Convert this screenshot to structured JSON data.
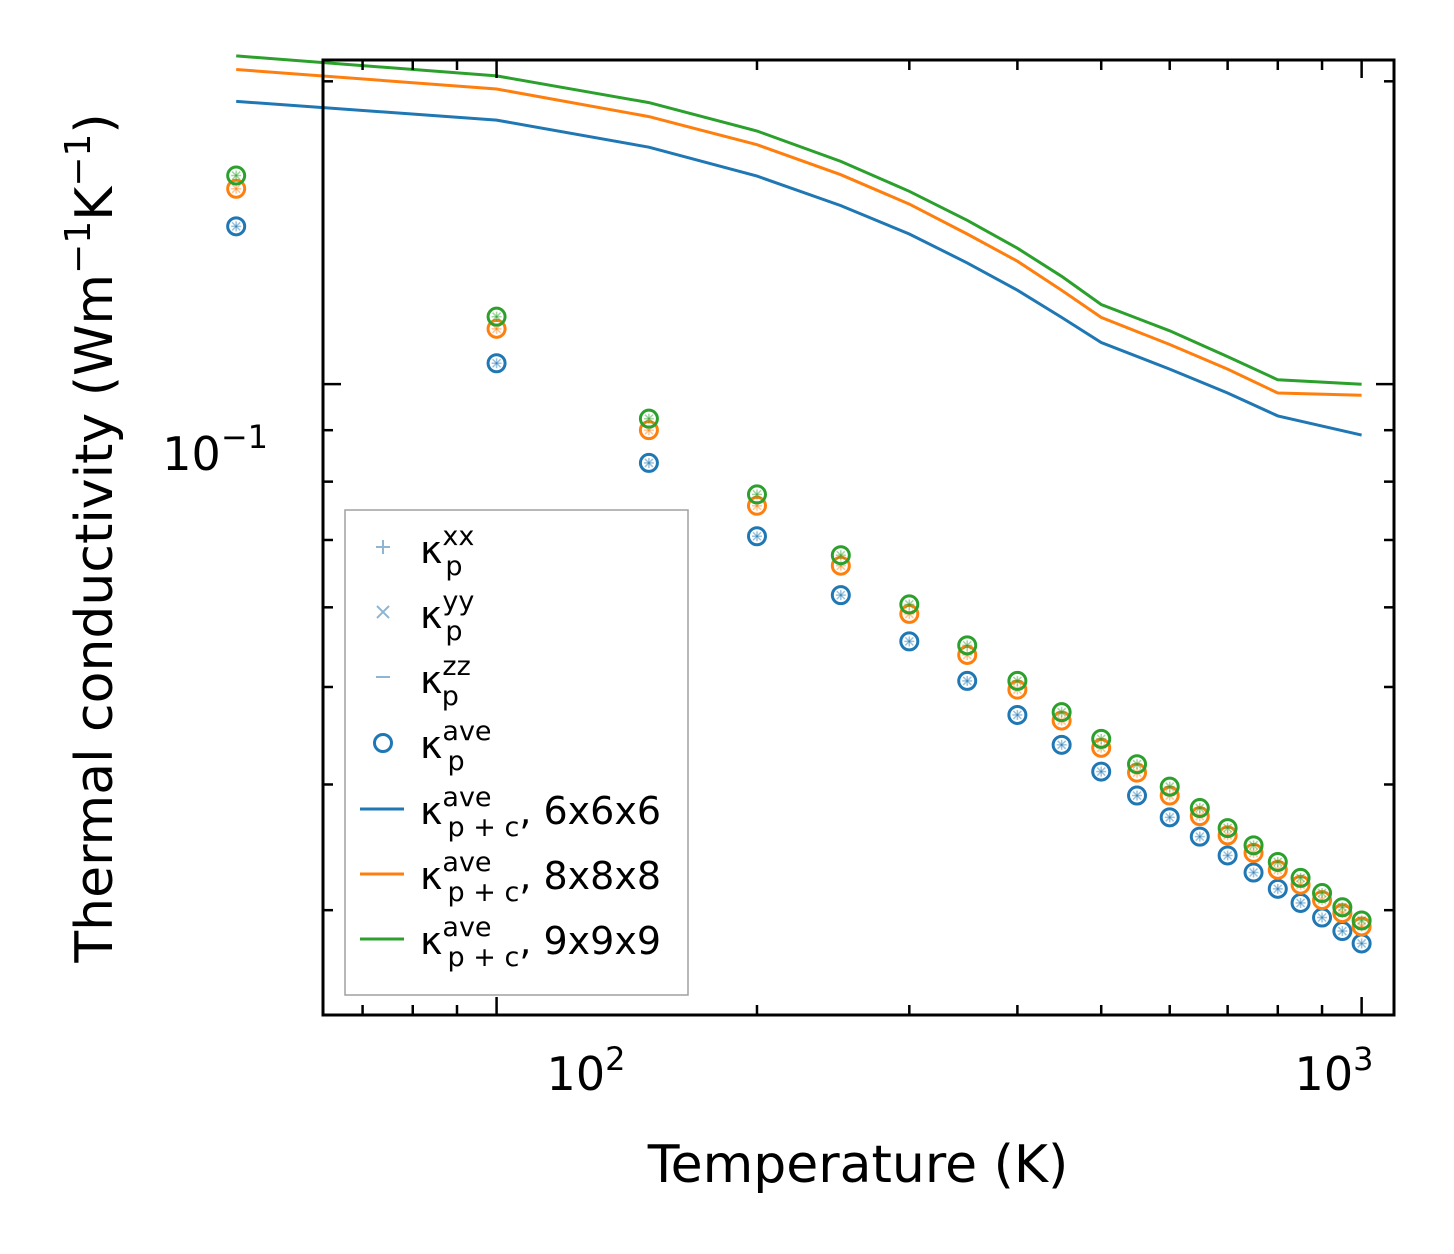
{
  "chart_data": {
    "type": "scatter",
    "title": "",
    "xlabel": "Temperature (K)",
    "ylabel": "Thermal conductivity (Wm",
    "ylabel_unit_parts": [
      "−1",
      "K",
      "−1",
      ")"
    ],
    "xscale": "log",
    "yscale": "log",
    "xlim": [
      63,
      1090
    ],
    "ylim": [
      0.0236,
      0.21
    ],
    "x_ticks": [
      {
        "value": 100,
        "base": "10",
        "exp": "2"
      },
      {
        "value": 1000,
        "base": "10",
        "exp": "3"
      }
    ],
    "y_ticks": [
      {
        "value": 0.1,
        "base": "10",
        "exp": "−1"
      }
    ],
    "temperatures": [
      50,
      100,
      150,
      200,
      250,
      300,
      350,
      400,
      450,
      500,
      550,
      600,
      650,
      700,
      750,
      800,
      850,
      900,
      950,
      1000
    ],
    "series": [
      {
        "name": "6x6x6",
        "color": "#1f77b4",
        "kappa_p_ave": [
          0.1435,
          0.1049,
          0.0835,
          0.0706,
          0.0617,
          0.0555,
          0.0507,
          0.0469,
          0.0438,
          0.0412,
          0.039,
          0.0371,
          0.0355,
          0.034,
          0.0327,
          0.0315,
          0.0305,
          0.0295,
          0.0286,
          0.0278
        ],
        "kappa_pc_ave": [
          0.191,
          0.183,
          0.172,
          0.161,
          0.1505,
          0.141,
          0.132,
          0.124,
          0.1165,
          0.11,
          0.1035,
          0.098,
          0.093,
          0.089
        ]
      },
      {
        "name": "8x8x8",
        "color": "#ff7f0e",
        "kappa_p_ave": [
          0.1564,
          0.1135,
          0.09,
          0.0757,
          0.066,
          0.0591,
          0.0538,
          0.0497,
          0.0463,
          0.0435,
          0.0411,
          0.039,
          0.0372,
          0.0356,
          0.0342,
          0.0329,
          0.0318,
          0.0307,
          0.0298,
          0.0289
        ],
        "kappa_pc_ave": [
          0.2055,
          0.1965,
          0.1845,
          0.173,
          0.1615,
          0.151,
          0.141,
          0.1325,
          0.124,
          0.1165,
          0.1095,
          0.1035,
          0.098,
          0.0975
        ]
      },
      {
        "name": "9x9x9",
        "color": "#2ca02c",
        "kappa_p_ave": [
          0.1612,
          0.1167,
          0.0924,
          0.0777,
          0.0676,
          0.0604,
          0.055,
          0.0507,
          0.0472,
          0.0444,
          0.0419,
          0.0398,
          0.0379,
          0.0362,
          0.0348,
          0.0335,
          0.0323,
          0.0312,
          0.0302,
          0.0293
        ],
        "kappa_pc_ave": [
          0.212,
          0.2025,
          0.1905,
          0.1785,
          0.1665,
          0.1555,
          0.1455,
          0.1365,
          0.128,
          0.12,
          0.113,
          0.1065,
          0.101,
          0.1
        ]
      }
    ],
    "line_temperatures": [
      50,
      100,
      150,
      200,
      250,
      300,
      350,
      400,
      450,
      500,
      600,
      700,
      800,
      1000
    ],
    "legend": {
      "placement": "lower left",
      "entries": [
        {
          "sym": "κ",
          "sub": "p",
          "sup": "xx",
          "tail": "",
          "marker": "plus"
        },
        {
          "sym": "κ",
          "sub": "p",
          "sup": "yy",
          "tail": "",
          "marker": "cross"
        },
        {
          "sym": "κ",
          "sub": "p",
          "sup": "zz",
          "tail": "",
          "marker": "dash"
        },
        {
          "sym": "κ",
          "sub": "p",
          "sup": "ave",
          "tail": "",
          "marker": "circle"
        },
        {
          "sym": "κ",
          "sub": "p + c",
          "sup": "ave",
          "tail": ", 6x6x6",
          "marker": "line",
          "color": "#1f77b4"
        },
        {
          "sym": "κ",
          "sub": "p + c",
          "sup": "ave",
          "tail": ", 8x8x8",
          "marker": "line",
          "color": "#ff7f0e"
        },
        {
          "sym": "κ",
          "sub": "p + c",
          "sup": "ave",
          "tail": ", 9x9x9",
          "marker": "line",
          "color": "#2ca02c"
        }
      ]
    }
  }
}
